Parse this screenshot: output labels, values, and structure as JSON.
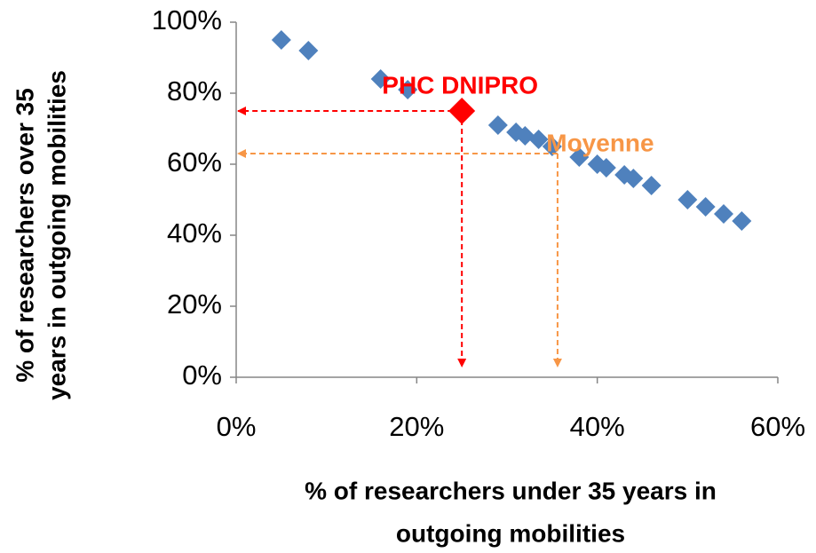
{
  "chart_data": {
    "type": "scatter",
    "x_label": [
      "% of researchers under 35 years in",
      "outgoing mobilities"
    ],
    "y_label": [
      "% of researchers over 35",
      "years in outgoing mobilities"
    ],
    "series": [
      {
        "color": "#4f81bd",
        "x": [
          5,
          8,
          16,
          19,
          29,
          31,
          32,
          33.5,
          35,
          38,
          40,
          41,
          43,
          44,
          46,
          50,
          52,
          54,
          56
        ],
        "values": [
          95,
          92,
          84,
          81,
          71,
          69,
          68,
          67,
          65,
          62,
          60,
          59,
          57,
          56,
          54,
          50,
          48,
          46,
          44
        ]
      }
    ],
    "annotations": [
      {
        "text": "PHC DNIPRO",
        "x": 25,
        "y": 75,
        "color": "#ff0000",
        "marker": true
      },
      {
        "text": "Moyenne",
        "x": 35.6,
        "y": 63,
        "color": "#f79646",
        "marker": false
      }
    ],
    "xlim": [
      0,
      60
    ],
    "ylim": [
      0,
      100
    ],
    "xticks": [
      {
        "value": 0,
        "label": "0%"
      },
      {
        "value": 20,
        "label": "20%"
      },
      {
        "value": 40,
        "label": "40%"
      },
      {
        "value": 60,
        "label": "60%"
      }
    ],
    "yticks": [
      {
        "value": 0,
        "label": "0%"
      },
      {
        "value": 20,
        "label": "20%"
      },
      {
        "value": 40,
        "label": "40%"
      },
      {
        "value": 60,
        "label": "60%"
      },
      {
        "value": 80,
        "label": "80%"
      },
      {
        "value": 100,
        "label": "100%"
      }
    ],
    "grid": false
  }
}
